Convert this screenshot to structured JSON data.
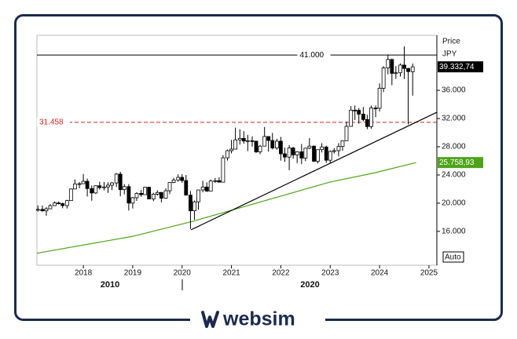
{
  "chart_data": {
    "type": "candlestick",
    "y_label": "Price",
    "currency": "JPY",
    "x": [
      2017.08,
      2017.17,
      2017.25,
      2017.33,
      2017.42,
      2017.5,
      2017.58,
      2017.67,
      2017.75,
      2017.83,
      2017.92,
      2018.0,
      2018.08,
      2018.17,
      2018.25,
      2018.33,
      2018.42,
      2018.5,
      2018.58,
      2018.67,
      2018.75,
      2018.83,
      2018.92,
      2019.0,
      2019.08,
      2019.17,
      2019.25,
      2019.33,
      2019.42,
      2019.5,
      2019.58,
      2019.67,
      2019.75,
      2019.83,
      2019.92,
      2020.0,
      2020.08,
      2020.17,
      2020.25,
      2020.33,
      2020.42,
      2020.5,
      2020.58,
      2020.67,
      2020.75,
      2020.83,
      2020.92,
      2021.0,
      2021.08,
      2021.17,
      2021.25,
      2021.33,
      2021.42,
      2021.5,
      2021.58,
      2021.67,
      2021.75,
      2021.83,
      2021.92,
      2022.0,
      2022.08,
      2022.17,
      2022.25,
      2022.33,
      2022.42,
      2022.5,
      2022.58,
      2022.67,
      2022.75,
      2022.83,
      2022.92,
      2023.0,
      2023.08,
      2023.17,
      2023.25,
      2023.33,
      2023.42,
      2023.5,
      2023.58,
      2023.67,
      2023.75,
      2023.83,
      2023.92,
      2024.0,
      2024.08,
      2024.17,
      2024.25,
      2024.33,
      2024.42,
      2024.5,
      2024.58,
      2024.67
    ],
    "open": [
      19040,
      19120,
      18910,
      19200,
      19650,
      20030,
      19930,
      19650,
      20360,
      22010,
      22720,
      22760,
      23100,
      22070,
      21450,
      22470,
      22200,
      22300,
      22550,
      22870,
      24120,
      21920,
      22350,
      20010,
      20770,
      21390,
      21210,
      22260,
      20600,
      21280,
      21520,
      20700,
      21760,
      22930,
      23290,
      23660,
      23210,
      21140,
      18920,
      20190,
      21880,
      22290,
      21710,
      23140,
      23190,
      22980,
      26430,
      27440,
      27660,
      28970,
      29180,
      28810,
      28860,
      28790,
      27280,
      28090,
      29450,
      28890,
      27820,
      28790,
      27000,
      26530,
      27820,
      26850,
      27280,
      26390,
      27800,
      28090,
      25940,
      27590,
      27970,
      26090,
      27330,
      27450,
      28040,
      28860,
      30890,
      33190,
      33170,
      32620,
      31860,
      30860,
      33490,
      33460,
      36290,
      39170,
      40370,
      38410,
      38490,
      39580,
      39100,
      38650
    ],
    "high": [
      19670,
      19670,
      19450,
      19880,
      20240,
      20230,
      20080,
      20480,
      22080,
      23380,
      23000,
      24130,
      23490,
      22500,
      22520,
      23050,
      23010,
      22950,
      23000,
      24290,
      24450,
      22700,
      22700,
      20890,
      21560,
      21860,
      22310,
      22310,
      21480,
      21820,
      21580,
      22100,
      22970,
      23590,
      24090,
      24120,
      23990,
      21720,
      20370,
      21900,
      23180,
      22960,
      23340,
      23560,
      23670,
      26810,
      27600,
      28980,
      30710,
      30480,
      30210,
      29690,
      29480,
      28850,
      28260,
      30800,
      29490,
      29960,
      29120,
      29390,
      27880,
      28250,
      28000,
      27370,
      28390,
      27840,
      29220,
      28180,
      27610,
      28500,
      28140,
      27500,
      27820,
      28520,
      28870,
      31560,
      33770,
      33850,
      33490,
      33630,
      32540,
      33850,
      33850,
      36980,
      39430,
      41090,
      40520,
      39440,
      39810,
      42220,
      39190,
      39800
    ],
    "low": [
      18810,
      18800,
      18220,
      19150,
      19600,
      19820,
      19280,
      19240,
      20360,
      21960,
      22100,
      22760,
      20950,
      20350,
      21300,
      21930,
      21820,
      21460,
      21850,
      22300,
      20970,
      21240,
      18950,
      19240,
      20320,
      20910,
      21210,
      20550,
      20290,
      21090,
      20110,
      20610,
      21280,
      22850,
      23040,
      22890,
      21090,
      16360,
      17650,
      19070,
      21530,
      21600,
      21860,
      22880,
      22950,
      22950,
      26030,
      27060,
      27630,
      28310,
      28420,
      27390,
      28010,
      27120,
      26950,
      28090,
      27290,
      27630,
      27590,
      26040,
      25860,
      24680,
      26300,
      25690,
      25520,
      25960,
      27650,
      25900,
      25620,
      27190,
      25720,
      25660,
      27030,
      26630,
      27430,
      28820,
      30880,
      31790,
      31280,
      31610,
      30490,
      30540,
      32200,
      33000,
      35750,
      38270,
      36730,
      37620,
      37950,
      37610,
      31160,
      35250
    ],
    "close": [
      19120,
      18910,
      19200,
      19650,
      20030,
      19930,
      19650,
      20360,
      22010,
      22720,
      22760,
      23100,
      22070,
      21450,
      22470,
      22200,
      22300,
      22550,
      22870,
      24120,
      21920,
      22350,
      20010,
      20770,
      21390,
      21210,
      22260,
      20600,
      21280,
      21520,
      20700,
      21760,
      22930,
      23290,
      23660,
      23210,
      21140,
      18920,
      20190,
      21880,
      22290,
      21710,
      23140,
      23190,
      22980,
      26430,
      27440,
      27660,
      28970,
      29180,
      28810,
      28860,
      28790,
      27280,
      28090,
      29450,
      28890,
      27820,
      28790,
      27000,
      26530,
      27820,
      26850,
      27280,
      26390,
      27800,
      28090,
      25940,
      27590,
      27970,
      26090,
      27330,
      27450,
      28040,
      28860,
      30890,
      33190,
      33170,
      32620,
      31860,
      30860,
      33490,
      33460,
      36290,
      39170,
      40370,
      38410,
      38490,
      39580,
      39100,
      38650,
      39330
    ],
    "up_color": "#ffffff",
    "down_color": "#000000",
    "last_price": {
      "value": 39332.74,
      "label": "39.332,74"
    },
    "moving_average": {
      "x": [
        2017.06,
        2019.0,
        2020.2,
        2021.0,
        2022.0,
        2023.0,
        2023.9,
        2024.74
      ],
      "values": [
        12900,
        15300,
        17400,
        19000,
        21000,
        23000,
        24300,
        25759
      ],
      "color": "#4fa31a",
      "last": {
        "value": 25758.93,
        "label": "25.758,93"
      }
    },
    "trendline": {
      "x": [
        2020.18,
        2025.16
      ],
      "values": [
        16220,
        32890
      ],
      "color": "#000000"
    },
    "hlines": [
      {
        "value": 41000,
        "label": "41.000",
        "color": "#000000",
        "style": "solid"
      },
      {
        "value": 31458,
        "label": "31.458",
        "color": "#d42020",
        "style": "dashed"
      }
    ],
    "xlim": [
      2017.06,
      2025.16
    ],
    "ylim": [
      11200,
      43800
    ],
    "xticks": [
      2018,
      2019,
      2020,
      2021,
      2022,
      2023,
      2024,
      2025
    ],
    "yticks": [
      {
        "value": 16000,
        "label": "16.000"
      },
      {
        "value": 20000,
        "label": "20.000"
      },
      {
        "value": 24000,
        "label": "24.000"
      },
      {
        "value": 28000,
        "label": "28.000"
      },
      {
        "value": 32000,
        "label": "32.000"
      },
      {
        "value": 36000,
        "label": "36.000"
      }
    ],
    "decade_labels": [
      {
        "text": "2010",
        "x": 2018.54
      },
      {
        "text": "2020",
        "x": 2022.59
      }
    ],
    "scale_button": "Auto"
  },
  "brand": "websim"
}
